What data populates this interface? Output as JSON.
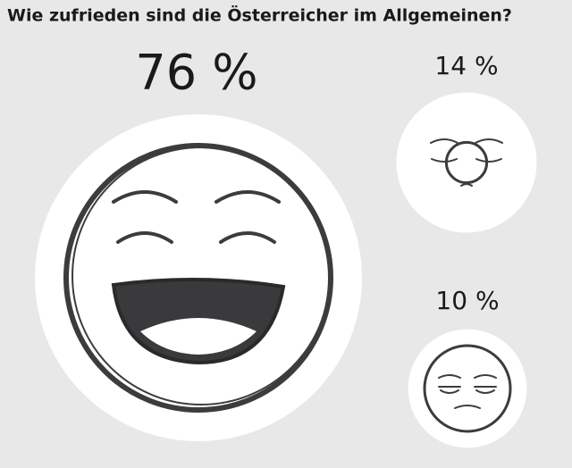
{
  "chart_data": {
    "type": "bubble",
    "title": "Wie zufrieden sind die Österreicher im Allgemeinen?",
    "values": [
      76,
      14,
      10
    ],
    "value_labels": [
      "76 %",
      "14 %",
      "10 %"
    ]
  }
}
